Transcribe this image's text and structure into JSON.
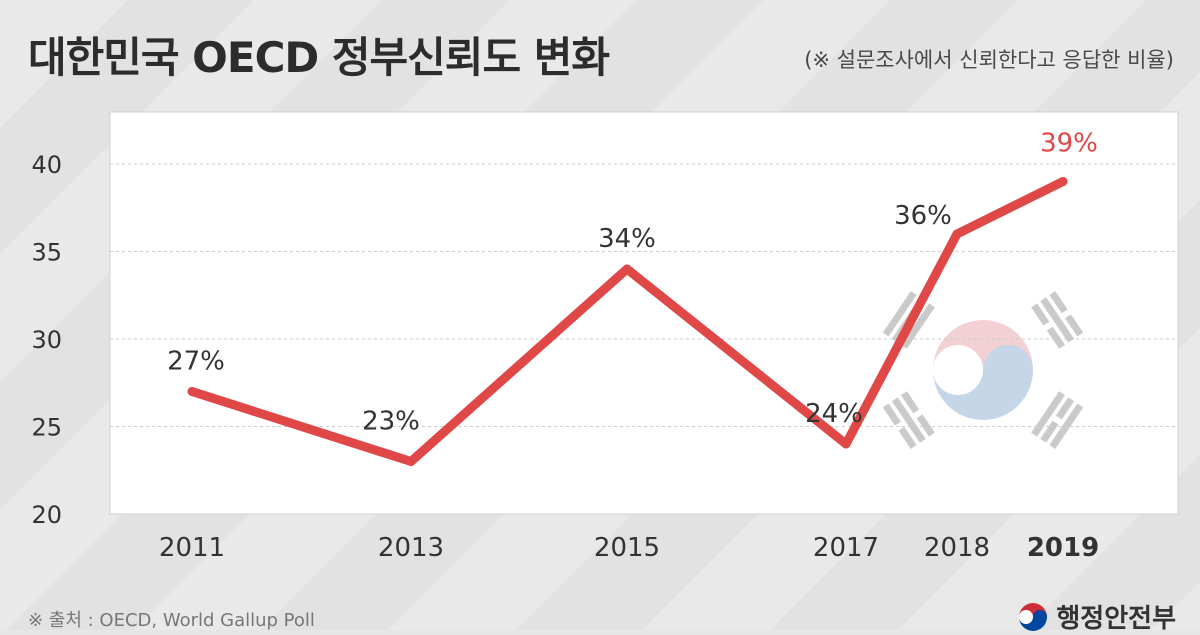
{
  "header": {
    "title": "대한민국 OECD 정부신뢰도 변화",
    "subtitle": "(※ 설문조사에서 신뢰한다고 응답한 비율)"
  },
  "footer": {
    "source": "※ 출처 : OECD, World Gallup Poll",
    "ministry": "행정안전부"
  },
  "chart_data": {
    "type": "line",
    "title": "대한민국 OECD 정부신뢰도 변화",
    "subtitle": "(※ 설문조사에서 신뢰한다고 응답한 비율)",
    "xlabel": "",
    "ylabel": "",
    "x": [
      "2011",
      "2013",
      "2015",
      "2017",
      "2018",
      "2019"
    ],
    "series": [
      {
        "values": [
          27,
          23,
          34,
          24,
          36,
          39
        ],
        "labels": [
          "27%",
          "23%",
          "34%",
          "24%",
          "36%",
          "39%"
        ]
      }
    ],
    "ylim": [
      20,
      42
    ],
    "yticks": [
      "20",
      "25",
      "30",
      "35",
      "40"
    ],
    "grid": true,
    "highlight_last": true,
    "colors": {
      "line": "#e04848",
      "highlight_label": "#e04848",
      "label": "#333333",
      "tick": "#333333",
      "plot_bg": "#ffffff",
      "grid": "#cccccc"
    },
    "background_image": "korean-flag"
  }
}
